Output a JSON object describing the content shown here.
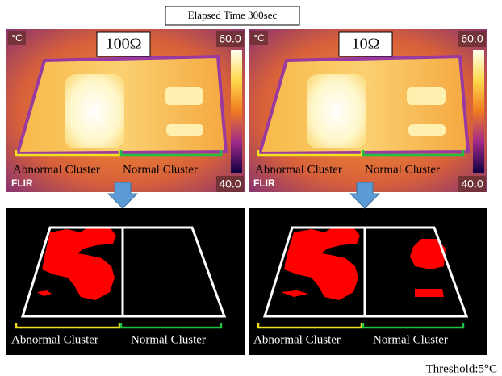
{
  "title": "Elapsed Time 300sec",
  "threshold": "Threshold:5°C",
  "panels": [
    {
      "resistance": "100Ω",
      "unit": "°C",
      "scale_max": "60.0",
      "scale_min": "40.0",
      "brand": "FLIR",
      "thermal_labels": [
        "Abnormal Cluster",
        "Normal Cluster"
      ],
      "binary_labels": [
        "Abnormal Cluster",
        "Normal Cluster"
      ]
    },
    {
      "resistance": "10Ω",
      "unit": "°C",
      "scale_max": "60.0",
      "scale_min": "40.0",
      "brand": "FLIR",
      "thermal_labels": [
        "Abnormal Cluster",
        "Normal Cluster"
      ],
      "binary_labels": [
        "Abnormal Cluster",
        "Normal Cluster"
      ]
    }
  ]
}
